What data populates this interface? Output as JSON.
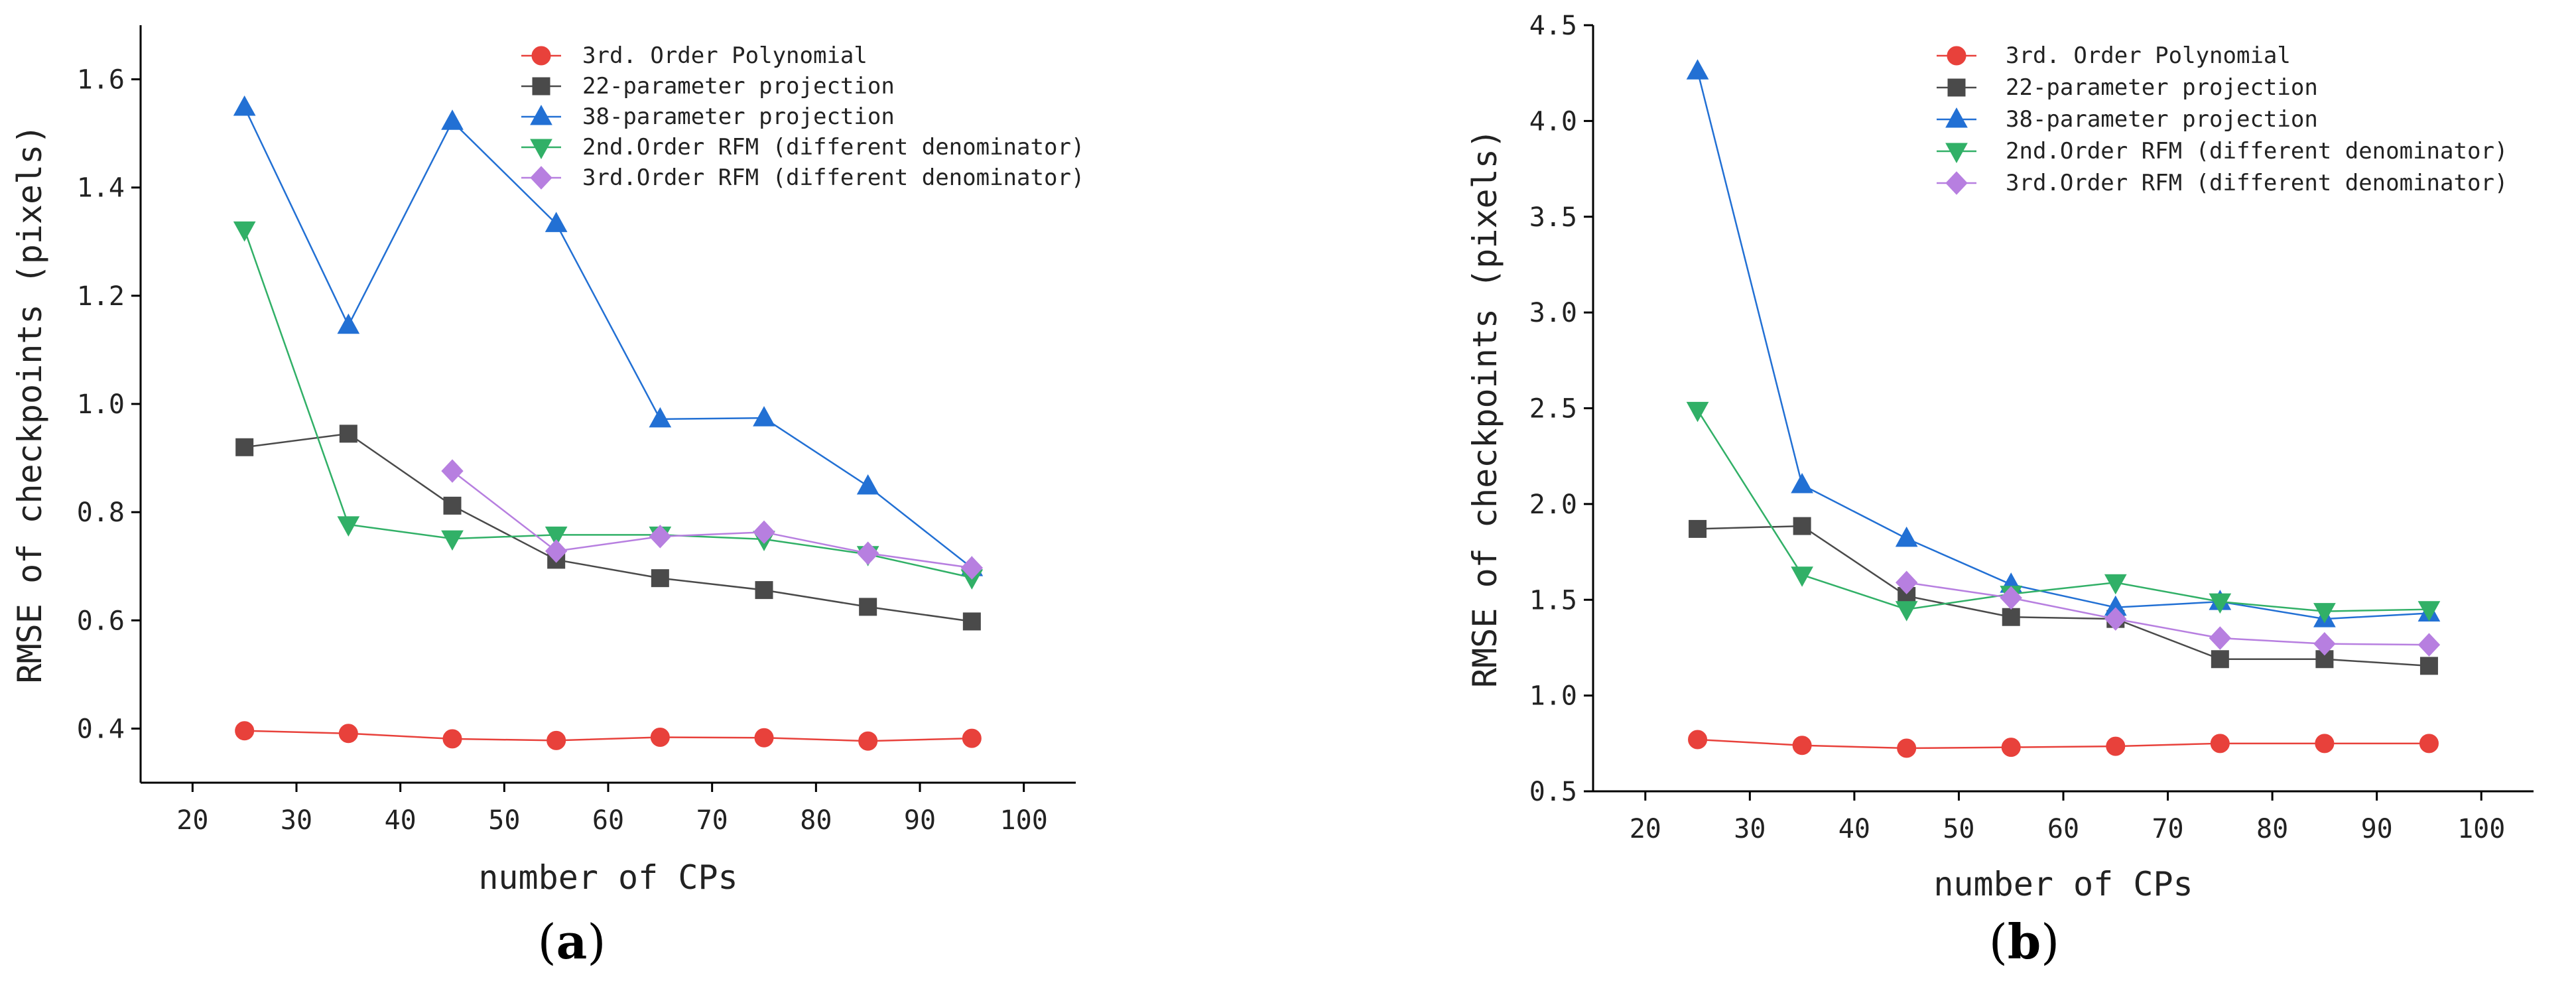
{
  "chart_data": [
    {
      "panel": "a",
      "type": "line",
      "xlabel": "number of CPs",
      "ylabel": "RMSE of checkpoints (pixels)",
      "xlim": [
        15,
        105
      ],
      "ylim": [
        0.3,
        1.7
      ],
      "xticks": [
        20,
        30,
        40,
        50,
        60,
        70,
        80,
        90,
        100
      ],
      "xtick_labels": [
        "20",
        "30",
        "40",
        "50",
        "60",
        "70",
        "80",
        "90",
        "100"
      ],
      "yticks": [
        0.4,
        0.6,
        0.8,
        1.0,
        1.2,
        1.4,
        1.6
      ],
      "ytick_labels": [
        "0.4",
        "0.6",
        "0.8",
        "1.0",
        "1.2",
        "1.4",
        "1.6"
      ],
      "legend_position": "top-right",
      "series": [
        {
          "name": "3rd. Order Polynomial",
          "color": "#e8413b",
          "marker": "circle",
          "x": [
            25,
            35,
            45,
            55,
            65,
            75,
            85,
            95
          ],
          "values": [
            0.396,
            0.391,
            0.381,
            0.378,
            0.384,
            0.383,
            0.377,
            0.382
          ]
        },
        {
          "name": "22-parameter projection",
          "color": "#4a4a4a",
          "marker": "square",
          "x": [
            25,
            35,
            45,
            55,
            65,
            75,
            85,
            95
          ],
          "values": [
            0.92,
            0.945,
            0.812,
            0.712,
            0.678,
            0.656,
            0.625,
            0.598
          ]
        },
        {
          "name": "38-parameter projection",
          "color": "#2270d4",
          "marker": "triangle-up",
          "x": [
            25,
            35,
            45,
            55,
            65,
            75,
            85,
            95
          ],
          "values": [
            1.548,
            1.145,
            1.522,
            1.333,
            0.972,
            0.974,
            0.848,
            0.697
          ]
        },
        {
          "name": "2nd.Order RFM (different denominator)",
          "color": "#31b067",
          "marker": "triangle-down",
          "x": [
            25,
            35,
            45,
            55,
            65,
            75,
            85,
            95
          ],
          "values": [
            1.322,
            0.777,
            0.751,
            0.758,
            0.758,
            0.75,
            0.722,
            0.679
          ]
        },
        {
          "name": "3rd.Order RFM (different denominator)",
          "color": "#b77fe0",
          "marker": "diamond",
          "x": [
            45,
            55,
            65,
            75,
            85,
            95
          ],
          "values": [
            0.876,
            0.728,
            0.755,
            0.763,
            0.724,
            0.697
          ]
        }
      ]
    },
    {
      "panel": "b",
      "type": "line",
      "xlabel": "number of CPs",
      "ylabel": "RMSE of checkpoints (pixels)",
      "xlim": [
        15,
        105
      ],
      "ylim": [
        0.5,
        4.5
      ],
      "xticks": [
        20,
        30,
        40,
        50,
        60,
        70,
        80,
        90,
        100
      ],
      "xtick_labels": [
        "20",
        "30",
        "40",
        "50",
        "60",
        "70",
        "80",
        "90",
        "100"
      ],
      "yticks": [
        0.5,
        1.0,
        1.5,
        2.0,
        2.5,
        3.0,
        3.5,
        4.0,
        4.5
      ],
      "ytick_labels": [
        "0.5",
        "1.0",
        "1.5",
        "2.0",
        "2.5",
        "3.0",
        "3.5",
        "4.0",
        "4.5"
      ],
      "legend_position": "top-right",
      "series": [
        {
          "name": "3rd. Order Polynomial",
          "color": "#e8413b",
          "marker": "circle",
          "x": [
            25,
            35,
            45,
            55,
            65,
            75,
            85,
            95
          ],
          "values": [
            0.77,
            0.74,
            0.725,
            0.73,
            0.735,
            0.75,
            0.75,
            0.75
          ]
        },
        {
          "name": "22-parameter projection",
          "color": "#4a4a4a",
          "marker": "square",
          "x": [
            25,
            35,
            45,
            55,
            65,
            75,
            85,
            95
          ],
          "values": [
            1.87,
            1.885,
            1.52,
            1.41,
            1.4,
            1.19,
            1.19,
            1.155
          ]
        },
        {
          "name": "38-parameter projection",
          "color": "#2270d4",
          "marker": "triangle-up",
          "x": [
            25,
            35,
            45,
            55,
            65,
            75,
            85,
            95
          ],
          "values": [
            4.26,
            2.1,
            1.82,
            1.58,
            1.46,
            1.49,
            1.4,
            1.43
          ]
        },
        {
          "name": "2nd.Order RFM (different denominator)",
          "color": "#31b067",
          "marker": "triangle-down",
          "x": [
            25,
            35,
            45,
            55,
            65,
            75,
            85,
            95
          ],
          "values": [
            2.49,
            1.63,
            1.45,
            1.53,
            1.59,
            1.49,
            1.44,
            1.45
          ]
        },
        {
          "name": "3rd.Order RFM (different denominator)",
          "color": "#b77fe0",
          "marker": "diamond",
          "x": [
            45,
            55,
            65,
            75,
            85,
            95
          ],
          "values": [
            1.59,
            1.51,
            1.4,
            1.3,
            1.27,
            1.265
          ]
        }
      ]
    }
  ]
}
